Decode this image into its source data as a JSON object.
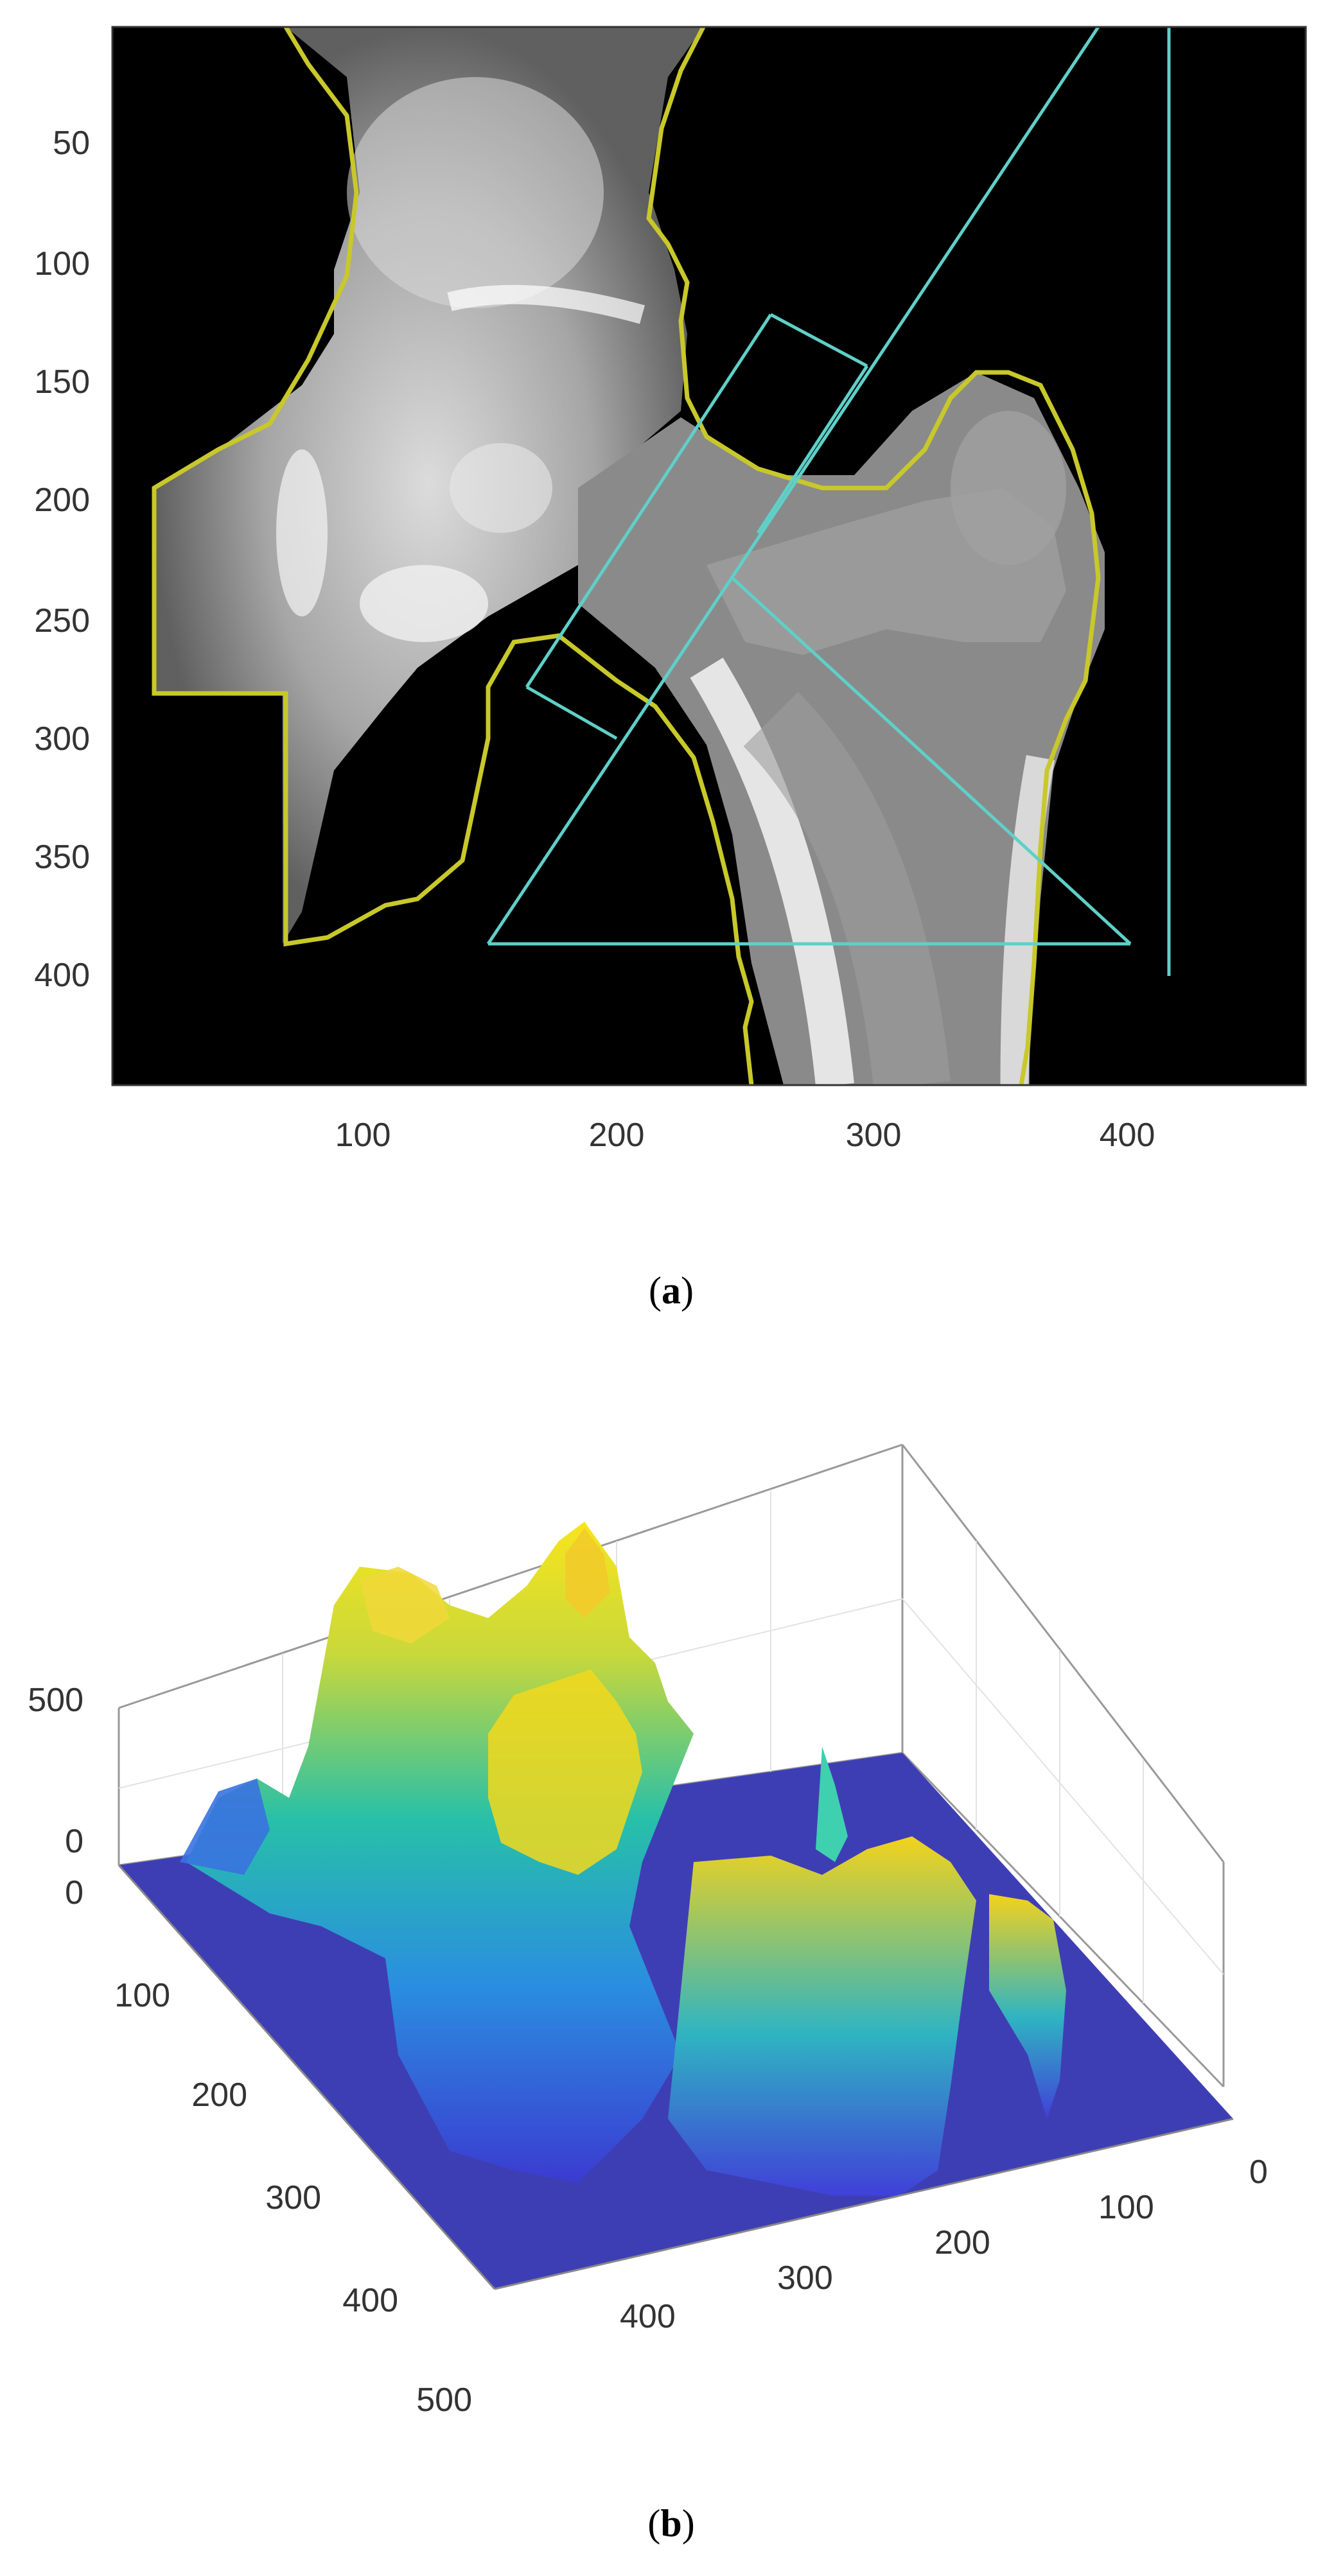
{
  "panel_a": {
    "label": "a",
    "y_ticks": [
      "50",
      "100",
      "150",
      "200",
      "250",
      "300",
      "350",
      "400"
    ],
    "x_ticks": [
      "100",
      "200",
      "300",
      "400"
    ],
    "colors": {
      "background": "#000000",
      "bone_outline": "#c8c82a",
      "roi_lines": "#5fd0c8",
      "frame": "#333333"
    }
  },
  "panel_b": {
    "label": "b",
    "z_ticks": [
      "0",
      "500"
    ],
    "left_axis_ticks": [
      "0",
      "100",
      "200",
      "300",
      "400",
      "500"
    ],
    "right_axis_ticks": [
      "0",
      "100",
      "200",
      "300",
      "400"
    ],
    "colors": {
      "floor": "#3e3eb4",
      "low": "#3b5bdc",
      "mid": "#23b8b0",
      "high": "#f2e21b",
      "axes": "#888888"
    }
  },
  "chart_data": [
    {
      "type": "heatmap",
      "title": "",
      "xlabel": "",
      "ylabel": "",
      "xlim": [
        0,
        480
      ],
      "ylim": [
        450,
        0
      ],
      "x_ticks": [
        100,
        200,
        300,
        400
      ],
      "y_ticks": [
        50,
        100,
        150,
        200,
        250,
        300,
        350,
        400
      ],
      "colormap": "gray"
    },
    {
      "type": "area",
      "title": "",
      "xlabel": "",
      "ylabel": "",
      "x_ticks": [
        0,
        100,
        200,
        300,
        400,
        500
      ],
      "y_ticks": [
        0,
        100,
        200,
        300,
        400
      ],
      "z_ticks": [
        0,
        500
      ],
      "colormap": "parula"
    }
  ]
}
